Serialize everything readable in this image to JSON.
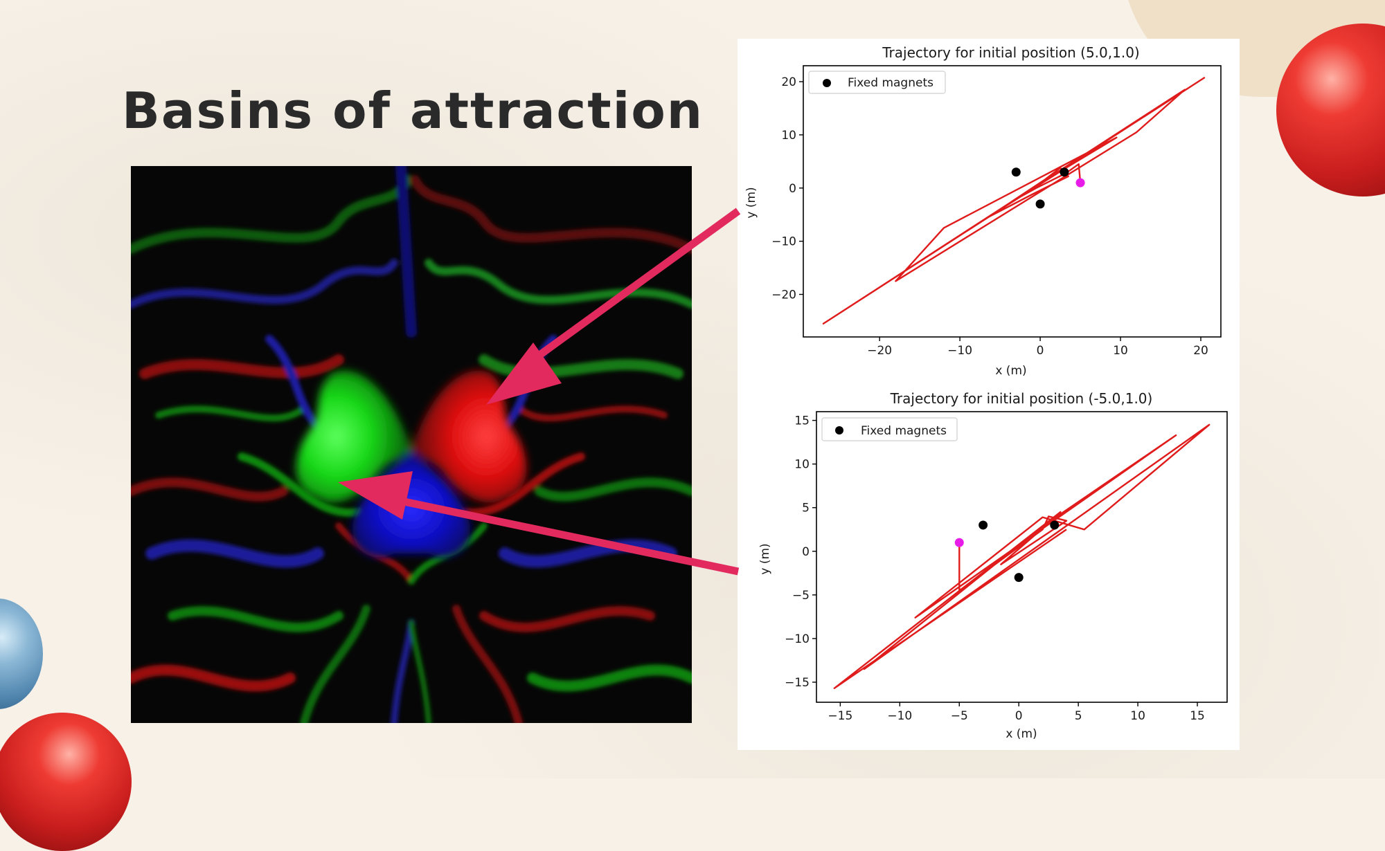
{
  "slide": {
    "title": "Basins of attraction"
  },
  "colors": {
    "background": "#f7f1e8",
    "title_text": "#2a2a2a",
    "arrow": "#e22a5e",
    "trajectory": "#e01b1b",
    "start_point": "#e81ce8",
    "magnet": "#000000",
    "basin_green": "#1fe31f",
    "basin_red": "#f01515",
    "basin_blue": "#1515e0"
  },
  "chart_data": [
    {
      "type": "line",
      "title": "Trajectory for initial position (5.0,1.0)",
      "xlabel": "x (m)",
      "ylabel": "y (m)",
      "xlim": [
        -29.5,
        22.5
      ],
      "ylim": [
        -28,
        23
      ],
      "xticks": [
        -20,
        -10,
        0,
        10,
        20
      ],
      "yticks": [
        20,
        10,
        0,
        -10,
        -20
      ],
      "xtick_labels": [
        "−20",
        "−10",
        "0",
        "10",
        "20"
      ],
      "ytick_labels": [
        "20",
        "10",
        "0",
        "−10",
        "−20"
      ],
      "legend": {
        "label": "Fixed magnets",
        "placement": "top-left"
      },
      "magnets": [
        {
          "x": -3,
          "y": 3
        },
        {
          "x": 0,
          "y": -3
        },
        {
          "x": 3,
          "y": 3
        }
      ],
      "start": {
        "x": 5.0,
        "y": 1.0
      },
      "trajectory": [
        [
          5,
          1
        ],
        [
          4.8,
          4.5
        ],
        [
          3.2,
          2.8
        ],
        [
          -0.5,
          0
        ],
        [
          -3.5,
          -2.5
        ],
        [
          0.5,
          1.5
        ],
        [
          2.5,
          3.8
        ],
        [
          3.5,
          2.2
        ],
        [
          -1,
          -1.2
        ],
        [
          -6.5,
          -5.5
        ],
        [
          3,
          3.6
        ],
        [
          9.5,
          9.5
        ],
        [
          -12,
          -7.5
        ],
        [
          -18,
          -17.5
        ],
        [
          12,
          10.5
        ],
        [
          18,
          18.5
        ],
        [
          -27,
          -25.5
        ],
        [
          20.5,
          20.8
        ]
      ]
    },
    {
      "type": "line",
      "title": "Trajectory for initial position (-5.0,1.0)",
      "xlabel": "x (m)",
      "ylabel": "y (m)",
      "xlim": [
        -17,
        17.5
      ],
      "ylim": [
        -17.3,
        16
      ],
      "xticks": [
        -15,
        -10,
        -5,
        0,
        5,
        10,
        15
      ],
      "yticks": [
        15,
        10,
        5,
        0,
        -5,
        -10,
        -15
      ],
      "xtick_labels": [
        "−15",
        "−10",
        "−5",
        "0",
        "5",
        "10",
        "15"
      ],
      "ytick_labels": [
        "15",
        "10",
        "5",
        "0",
        "−5",
        "−10",
        "−15"
      ],
      "legend": {
        "label": "Fixed magnets",
        "placement": "top-left"
      },
      "magnets": [
        {
          "x": -3,
          "y": 3
        },
        {
          "x": 0,
          "y": -3
        },
        {
          "x": 3,
          "y": 3
        }
      ],
      "start": {
        "x": -5.0,
        "y": 1.0
      },
      "trajectory": [
        [
          -5,
          1
        ],
        [
          -5,
          -4.5
        ],
        [
          2,
          2.5
        ],
        [
          2.5,
          4
        ],
        [
          4,
          3.5
        ],
        [
          -1.5,
          -1.5
        ],
        [
          3,
          3.8
        ],
        [
          13.2,
          13.3
        ],
        [
          -8.7,
          -7.6
        ],
        [
          2,
          3.9
        ],
        [
          5.5,
          2.5
        ],
        [
          16,
          14.5
        ],
        [
          -13,
          -13.5
        ],
        [
          3.5,
          4.5
        ],
        [
          -15.5,
          -15.7
        ],
        [
          4,
          2.5
        ]
      ]
    }
  ]
}
